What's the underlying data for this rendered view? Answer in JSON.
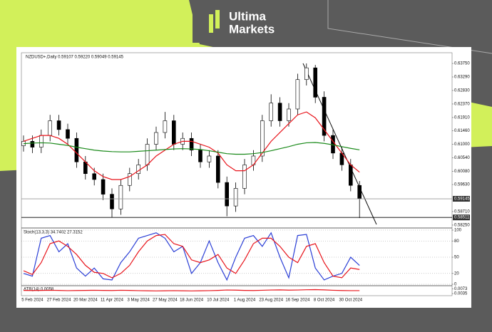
{
  "brand": {
    "line1": "Ultima",
    "line2": "Markets"
  },
  "chart_data": [
    {
      "type": "candlestick",
      "title": "NZDUSD+,Daily 0.59107 0.59220 0.59049 0.59145",
      "categories": [
        null,
        "5 Feb 2024",
        null,
        null,
        "27 Feb 2024",
        null,
        null,
        "20 Mar 2024",
        null,
        null,
        "11 Apr 2024",
        null,
        null,
        "3 May 2024",
        null,
        null,
        "27 May 2024",
        null,
        null,
        "18 Jun 2024",
        null,
        null,
        "10 Jul 2024",
        null,
        null,
        "1 Aug 2024",
        null,
        null,
        "23 Aug 2024",
        null,
        null,
        "16 Sep 2024",
        null,
        null,
        "8 Oct 2024",
        null,
        null,
        "30 Oct 2024",
        null
      ],
      "open": [
        0.6095,
        0.611,
        0.609,
        0.613,
        0.618,
        0.615,
        0.612,
        0.604,
        0.6,
        0.598,
        0.593,
        0.588,
        0.596,
        0.6,
        0.603,
        0.61,
        0.614,
        0.618,
        0.61,
        0.612,
        0.608,
        0.604,
        0.606,
        0.597,
        0.589,
        0.595,
        0.603,
        0.606,
        0.618,
        0.624,
        0.618,
        0.622,
        0.632,
        0.636,
        0.626,
        0.613,
        0.607,
        0.603,
        0.596
      ],
      "high": [
        0.613,
        0.613,
        0.615,
        0.62,
        0.62,
        0.617,
        0.614,
        0.606,
        0.602,
        0.6,
        0.595,
        0.598,
        0.602,
        0.605,
        0.612,
        0.616,
        0.621,
        0.62,
        0.614,
        0.614,
        0.61,
        0.608,
        0.608,
        0.599,
        0.597,
        0.605,
        0.608,
        0.62,
        0.627,
        0.626,
        0.624,
        0.634,
        0.6375,
        0.637,
        0.628,
        0.615,
        0.609,
        0.605,
        0.5975
      ],
      "low": [
        0.6075,
        0.607,
        0.607,
        0.611,
        0.613,
        0.61,
        0.602,
        0.598,
        0.596,
        0.591,
        0.5851,
        0.586,
        0.594,
        0.598,
        0.601,
        0.608,
        0.612,
        0.608,
        0.608,
        0.606,
        0.602,
        0.602,
        0.595,
        0.5855,
        0.587,
        0.593,
        0.601,
        0.604,
        0.616,
        0.616,
        0.616,
        0.62,
        0.63,
        0.624,
        0.611,
        0.605,
        0.601,
        0.594,
        0.5849
      ],
      "close": [
        0.611,
        0.609,
        0.613,
        0.618,
        0.615,
        0.612,
        0.604,
        0.6,
        0.598,
        0.593,
        0.588,
        0.596,
        0.6,
        0.603,
        0.61,
        0.614,
        0.618,
        0.61,
        0.612,
        0.608,
        0.604,
        0.606,
        0.597,
        0.589,
        0.595,
        0.603,
        0.606,
        0.618,
        0.624,
        0.618,
        0.622,
        0.632,
        0.636,
        0.626,
        0.613,
        0.607,
        0.603,
        0.596,
        0.59145
      ],
      "series": [
        {
          "color": "#e8141b",
          "values": [
            0.611,
            0.612,
            0.613,
            0.613,
            0.612,
            0.61,
            0.607,
            0.604,
            0.601,
            0.599,
            0.598,
            0.598,
            0.599,
            0.601,
            0.603,
            0.606,
            0.608,
            0.61,
            0.611,
            0.611,
            0.61,
            0.609,
            0.607,
            0.603,
            0.601,
            0.601,
            0.603,
            0.607,
            0.611,
            0.614,
            0.617,
            0.62,
            0.621,
            0.619,
            0.615,
            0.611,
            0.607,
            0.603,
            0.6005
          ]
        },
        {
          "color": "#1a8a1a",
          "values": [
            0.6102,
            0.6104,
            0.6105,
            0.6104,
            0.61,
            0.6096,
            0.609,
            0.6085,
            0.608,
            0.6077,
            0.6075,
            0.6074,
            0.6074,
            0.6076,
            0.6078,
            0.608,
            0.6082,
            0.6084,
            0.6085,
            0.6084,
            0.6082,
            0.6078,
            0.6073,
            0.6068,
            0.6066,
            0.6066,
            0.6068,
            0.6072,
            0.6078,
            0.6085,
            0.6092,
            0.61,
            0.6105,
            0.6106,
            0.6103,
            0.6098,
            0.6092,
            0.6086,
            0.6081
          ]
        }
      ],
      "ylim": [
        0.582,
        0.6409
      ],
      "yticks": [
        {
          "value": 0.6375,
          "label": "0.63750"
        },
        {
          "value": 0.6329,
          "label": "0.63290"
        },
        {
          "value": 0.6283,
          "label": "0.62830"
        },
        {
          "value": 0.6237,
          "label": "0.62370"
        },
        {
          "value": 0.6191,
          "label": "0.61910"
        },
        {
          "value": 0.6146,
          "label": "0.61460"
        },
        {
          "value": 0.61,
          "label": "0.61000"
        },
        {
          "value": 0.6054,
          "label": "0.60540"
        },
        {
          "value": 0.6008,
          "label": "0.60080"
        },
        {
          "value": 0.5963,
          "label": "0.59630"
        },
        {
          "value": 0.5871,
          "label": "0.58710"
        },
        {
          "value": 0.5825,
          "label": "0.58250"
        }
      ],
      "levels": [
        {
          "value": 0.59145,
          "label": "0.59145",
          "color": "#9a9a9a"
        },
        {
          "value": 0.58511,
          "label": "0.58511",
          "color": "#000000"
        }
      ]
    },
    {
      "type": "line",
      "title": "Stoch(13,3,3) 34.7402 27.3152",
      "series": [
        {
          "color": "#2b3fd6",
          "values": [
            20,
            15,
            85,
            90,
            60,
            75,
            30,
            15,
            30,
            10,
            8,
            40,
            60,
            85,
            90,
            95,
            85,
            60,
            70,
            20,
            40,
            80,
            40,
            8,
            50,
            85,
            90,
            70,
            95,
            50,
            12,
            90,
            92,
            30,
            8,
            15,
            20,
            50,
            34.7402
          ]
        },
        {
          "color": "#e8141b",
          "values": [
            25,
            18,
            40,
            75,
            80,
            70,
            55,
            35,
            22,
            20,
            12,
            20,
            35,
            60,
            80,
            90,
            92,
            75,
            70,
            45,
            40,
            45,
            55,
            30,
            20,
            45,
            75,
            85,
            85,
            70,
            50,
            40,
            70,
            75,
            40,
            15,
            12,
            30,
            27.3152
          ]
        }
      ],
      "ylim": [
        0,
        100
      ],
      "yticks": [
        0,
        20,
        50,
        80,
        100
      ],
      "grid": true
    },
    {
      "type": "line",
      "title": "ATR(14) 0.0058",
      "series": [
        {
          "color": "#e8141b",
          "values": [
            0.006,
            0.0059,
            0.006,
            0.0061,
            0.006,
            0.0058,
            0.0059,
            0.006,
            0.0061,
            0.006,
            0.0059,
            0.0061,
            0.006,
            0.0058,
            0.0057,
            0.0056,
            0.0057,
            0.0058,
            0.0057,
            0.0056,
            0.0057,
            0.0058,
            0.006,
            0.0063,
            0.0062,
            0.006,
            0.0059,
            0.0061,
            0.0063,
            0.0064,
            0.0062,
            0.0063,
            0.0065,
            0.0066,
            0.0064,
            0.0061,
            0.0059,
            0.0058,
            0.0058
          ]
        }
      ],
      "ylim": [
        0.003,
        0.008
      ],
      "yticks": [
        0.0035,
        0.0073
      ]
    }
  ]
}
